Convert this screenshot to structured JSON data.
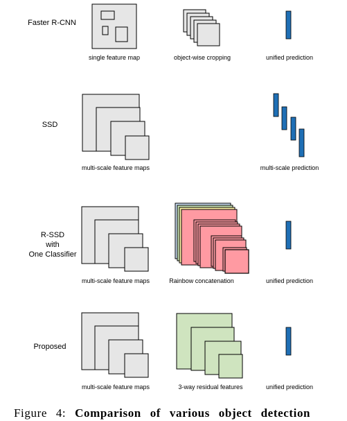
{
  "rows": [
    {
      "label": [
        "Faster R-CNN"
      ],
      "captions": [
        "single feature map",
        "object-wise cropping",
        "unified prediction"
      ]
    },
    {
      "label": [
        "SSD"
      ],
      "captions": [
        "multi-scale feature maps",
        "multi-scale prediction"
      ]
    },
    {
      "label": [
        "R-SSD",
        "with",
        "One Classifier"
      ],
      "captions": [
        "multi-scale feature maps",
        "Rainbow concatenation",
        "unified prediction"
      ]
    },
    {
      "label": [
        "Proposed"
      ],
      "captions": [
        "multi-scale feature maps",
        "3-way residual features",
        "unified prediction"
      ]
    }
  ],
  "figure": {
    "prefix": "Figure 4:",
    "title": "Comparison of various object detection"
  },
  "colors": {
    "feature_fill": "#e6e6e6",
    "prediction_blue": "#1f6fb5",
    "rainbow_pink": "#ff9aa2",
    "rainbow_yellow": "#fff3a6",
    "rainbow_green": "#cde8b8",
    "rainbow_blue": "#c9ddf2",
    "residual_green": "#cfe4bf"
  }
}
